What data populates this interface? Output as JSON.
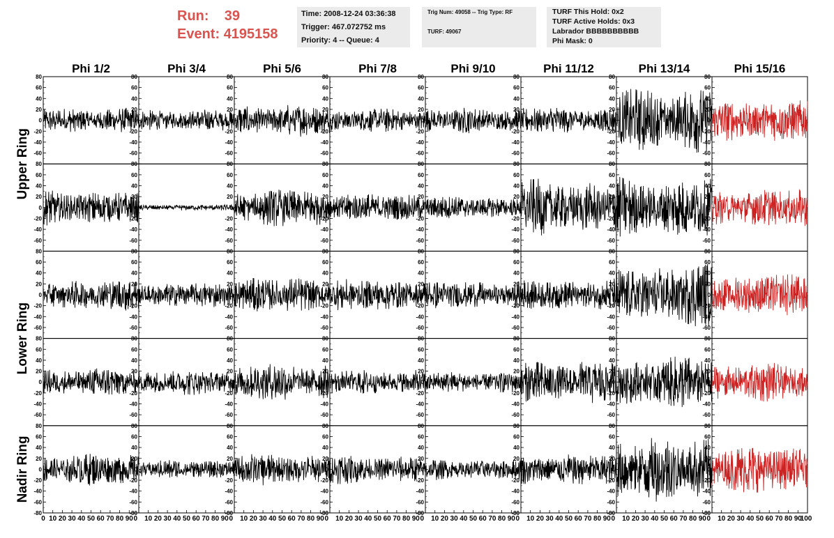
{
  "header": {
    "run_label": "Run:",
    "run_value": "39",
    "event_label": "Event:",
    "event_value": "4195158",
    "accent_color": "#d9534f"
  },
  "info_time": {
    "line1": "Time: 2008-12-24 03:36:38",
    "line2": "Trigger: 467.072752 ms",
    "line3": "Priority: 4 -- Queue: 4"
  },
  "info_trig": {
    "line1": "Trig Num: 49058 -- Trig Type: RF",
    "line2": "TURF: 49067"
  },
  "info_turf": {
    "line1": "TURF This Hold: 0x2",
    "line2": "TURF Active Holds: 0x3",
    "line3": "Labrador BBBBBBBBBB",
    "line4": "Phi Mask: 0"
  },
  "chart_data": {
    "type": "line",
    "columns": [
      "Phi 1/2",
      "Phi 3/4",
      "Phi 5/6",
      "Phi 7/8",
      "Phi 9/10",
      "Phi 11/12",
      "Phi 13/14",
      "Phi 15/16"
    ],
    "row_groups": [
      {
        "label": "Upper Ring",
        "rows": 2
      },
      {
        "label": "Lower Ring",
        "rows": 2
      },
      {
        "label": "Nadir Ring",
        "rows": 1
      }
    ],
    "ylim": [
      -80,
      80
    ],
    "xlim": [
      0,
      100
    ],
    "y_ticks": [
      -60,
      -40,
      -20,
      0,
      20,
      40,
      60,
      80
    ],
    "y_ticks_bottom_row": [
      -80,
      -60,
      -40,
      -20,
      0,
      20,
      40,
      60,
      80
    ],
    "x_ticks": [
      0,
      10,
      20,
      30,
      40,
      50,
      60,
      70,
      80,
      90,
      100
    ],
    "x_tick_labels": [
      "10",
      "20",
      "30",
      "40",
      "50",
      "60",
      "70",
      "80",
      "90"
    ],
    "x_label_first": "0",
    "x_label_end_inner": "0",
    "x_label_end_last": "100",
    "trace_color": "#000000",
    "highlight_color": "#cc2222",
    "highlight_column": 7,
    "amplitude_grid": [
      [
        16,
        14,
        20,
        15,
        16,
        18,
        42,
        28
      ],
      [
        22,
        4,
        24,
        18,
        14,
        35,
        38,
        24
      ],
      [
        20,
        16,
        22,
        20,
        18,
        20,
        40,
        26
      ],
      [
        18,
        16,
        24,
        16,
        14,
        28,
        32,
        24
      ],
      [
        20,
        12,
        20,
        18,
        14,
        20,
        42,
        30
      ]
    ]
  }
}
